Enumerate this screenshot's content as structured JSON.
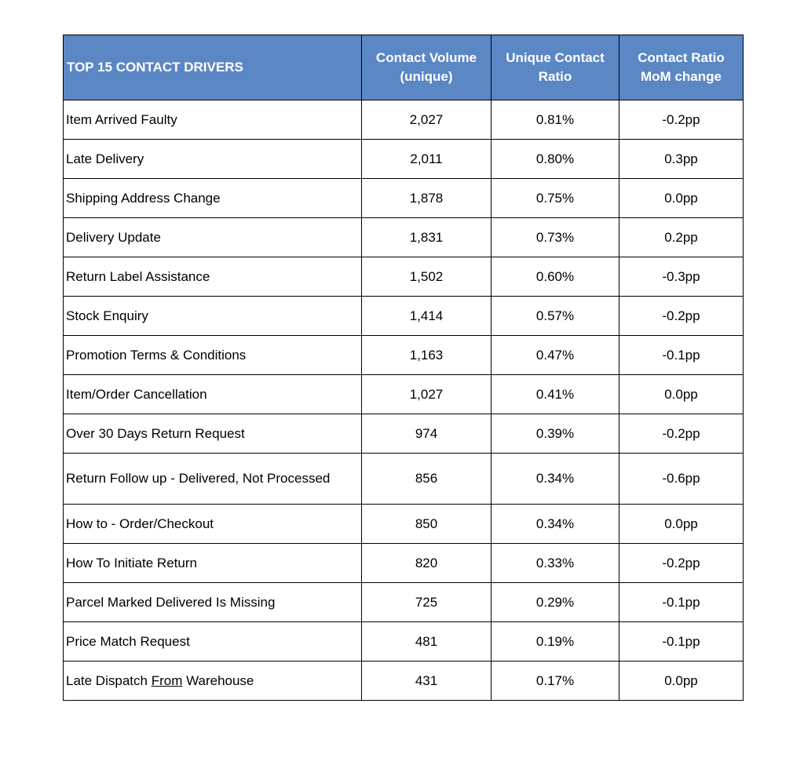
{
  "colors": {
    "header_bg": "#5b87c4",
    "header_text": "#ffffff",
    "border": "#000000",
    "body_bg": "#ffffff",
    "body_text": "#000000"
  },
  "table": {
    "header": {
      "driver": "TOP 15 CONTACT DRIVERS",
      "volume": "Contact Volume (unique)",
      "ratio": "Unique Contact Ratio",
      "mom": "Contact Ratio MoM change"
    },
    "rows": [
      {
        "driver": "Item Arrived Faulty",
        "volume": "2,027",
        "ratio": "0.81%",
        "mom": "-0.2pp"
      },
      {
        "driver": "Late Delivery",
        "volume": "2,011",
        "ratio": "0.80%",
        "mom": "0.3pp"
      },
      {
        "driver": "Shipping Address Change",
        "volume": "1,878",
        "ratio": "0.75%",
        "mom": "0.0pp"
      },
      {
        "driver": "Delivery Update",
        "volume": "1,831",
        "ratio": "0.73%",
        "mom": "0.2pp"
      },
      {
        "driver": "Return Label Assistance",
        "volume": "1,502",
        "ratio": "0.60%",
        "mom": "-0.3pp"
      },
      {
        "driver": "Stock Enquiry",
        "volume": "1,414",
        "ratio": "0.57%",
        "mom": "-0.2pp"
      },
      {
        "driver": "Promotion Terms & Conditions",
        "volume": "1,163",
        "ratio": "0.47%",
        "mom": "-0.1pp"
      },
      {
        "driver": "Item/Order Cancellation",
        "volume": "1,027",
        "ratio": "0.41%",
        "mom": "0.0pp"
      },
      {
        "driver": "Over 30 Days Return Request",
        "volume": "974",
        "ratio": "0.39%",
        "mom": "-0.2pp"
      },
      {
        "driver": "Return Follow up - Delivered, Not Processed",
        "volume": "856",
        "ratio": "0.34%",
        "mom": "-0.6pp",
        "tall": true
      },
      {
        "driver": "How to - Order/Checkout",
        "volume": "850",
        "ratio": "0.34%",
        "mom": "0.0pp"
      },
      {
        "driver": "How To Initiate Return",
        "volume": "820",
        "ratio": "0.33%",
        "mom": "-0.2pp"
      },
      {
        "driver": "Parcel Marked Delivered Is Missing",
        "volume": "725",
        "ratio": "0.29%",
        "mom": "-0.1pp"
      },
      {
        "driver": "Price Match Request",
        "volume": "481",
        "ratio": "0.19%",
        "mom": "-0.1pp"
      },
      {
        "driver_parts": [
          "Late Dispatch ",
          "From",
          " Warehouse"
        ],
        "volume": "431",
        "ratio": "0.17%",
        "mom": "0.0pp"
      }
    ]
  }
}
